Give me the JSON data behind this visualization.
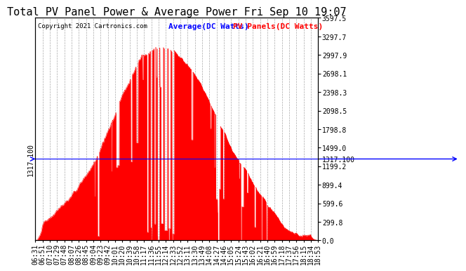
{
  "title": "Total PV Panel Power & Average Power Fri Sep 10 19:07",
  "copyright": "Copyright 2021 Cartronics.com",
  "legend_average": "Average(DC Watts)",
  "legend_pv": "PV Panels(DC Watts)",
  "avg_line_value": 1317.1,
  "avg_line_label": "1317.100",
  "yticks_right": [
    0.0,
    299.8,
    599.6,
    899.4,
    1199.2,
    1499.0,
    1798.8,
    2098.5,
    2398.3,
    2698.1,
    2997.9,
    3297.7,
    3597.5
  ],
  "ymin": 0.0,
  "ymax": 3597.5,
  "bg_color": "#ffffff",
  "fill_color": "#ff0000",
  "avg_color": "#0000ff",
  "grid_color": "#aaaaaa",
  "title_fontsize": 11,
  "tick_fontsize": 7,
  "copyright_fontsize": 6.5,
  "legend_fontsize": 8,
  "time_labels": [
    "06:31",
    "06:51",
    "07:10",
    "07:29",
    "07:48",
    "08:07",
    "08:26",
    "08:45",
    "09:04",
    "09:23",
    "09:42",
    "10:01",
    "10:20",
    "10:39",
    "10:58",
    "11:17",
    "11:36",
    "11:55",
    "12:14",
    "12:33",
    "12:52",
    "13:11",
    "13:30",
    "13:49",
    "14:08",
    "14:27",
    "14:46",
    "15:05",
    "15:24",
    "15:43",
    "16:02",
    "16:21",
    "16:40",
    "16:59",
    "17:18",
    "17:37",
    "17:56",
    "18:15",
    "18:34",
    "18:53"
  ]
}
